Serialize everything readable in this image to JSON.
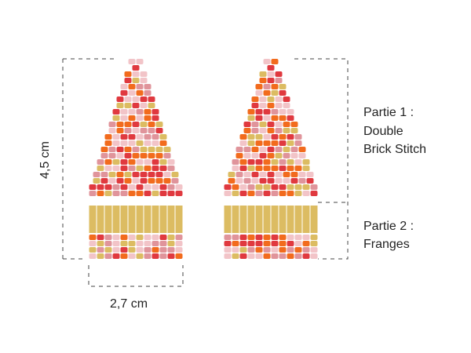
{
  "height_label": "4,5 cm",
  "width_label": "2,7 cm",
  "part1": {
    "title": "Partie 1 :",
    "line1": "Double",
    "line2": "Brick Stitch"
  },
  "part2": {
    "title": "Partie 2 :",
    "line1": "Franges"
  },
  "colors": {
    "red": "#e0393f",
    "orange": "#f26b1d",
    "light_pink": "#f2c4c8",
    "pink": "#e0949b",
    "gold": "#dcbc62"
  }
}
